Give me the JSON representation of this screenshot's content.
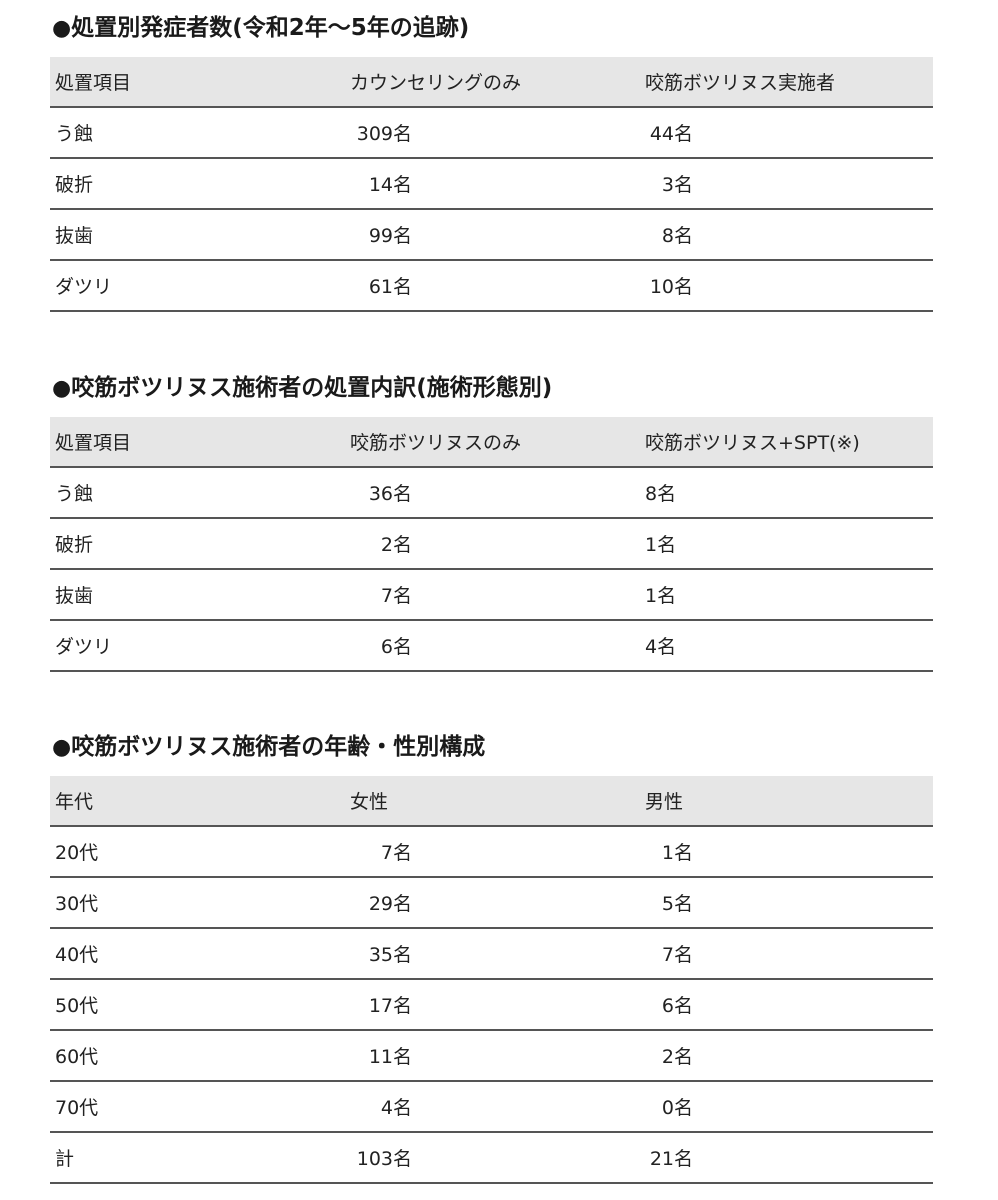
{
  "sections": [
    {
      "title": "処置別発症者数(令和2年〜5年の追跡)",
      "headers": [
        "処置項目",
        "カウンセリングのみ",
        "咬筋ボツリヌス実施者"
      ],
      "rows": [
        [
          "う蝕",
          "309名",
          "44名"
        ],
        [
          "破折",
          "14名",
          "3名"
        ],
        [
          "抜歯",
          "99名",
          "8名"
        ],
        [
          "ダツリ",
          "61名",
          "10名"
        ]
      ]
    },
    {
      "title": "咬筋ボツリヌス施術者の処置内訳(施術形態別)",
      "headers": [
        "処置項目",
        "咬筋ボツリヌスのみ",
        "咬筋ボツリヌス+SPT(※)"
      ],
      "rows": [
        [
          "う蝕",
          "36名",
          "8名"
        ],
        [
          "破折",
          "2名",
          "1名"
        ],
        [
          "抜歯",
          "7名",
          "1名"
        ],
        [
          "ダツリ",
          "6名",
          "4名"
        ]
      ]
    },
    {
      "title": "咬筋ボツリヌス施術者の年齢・性別構成",
      "headers": [
        "年代",
        "女性",
        "男性"
      ],
      "rows": [
        [
          "20代",
          "7名",
          "1名"
        ],
        [
          "30代",
          "29名",
          "5名"
        ],
        [
          "40代",
          "35名",
          "7名"
        ],
        [
          "50代",
          "17名",
          "6名"
        ],
        [
          "60代",
          "11名",
          "2名"
        ],
        [
          "70代",
          "4名",
          "0名"
        ],
        [
          "計",
          "103名",
          "21名"
        ]
      ]
    }
  ]
}
